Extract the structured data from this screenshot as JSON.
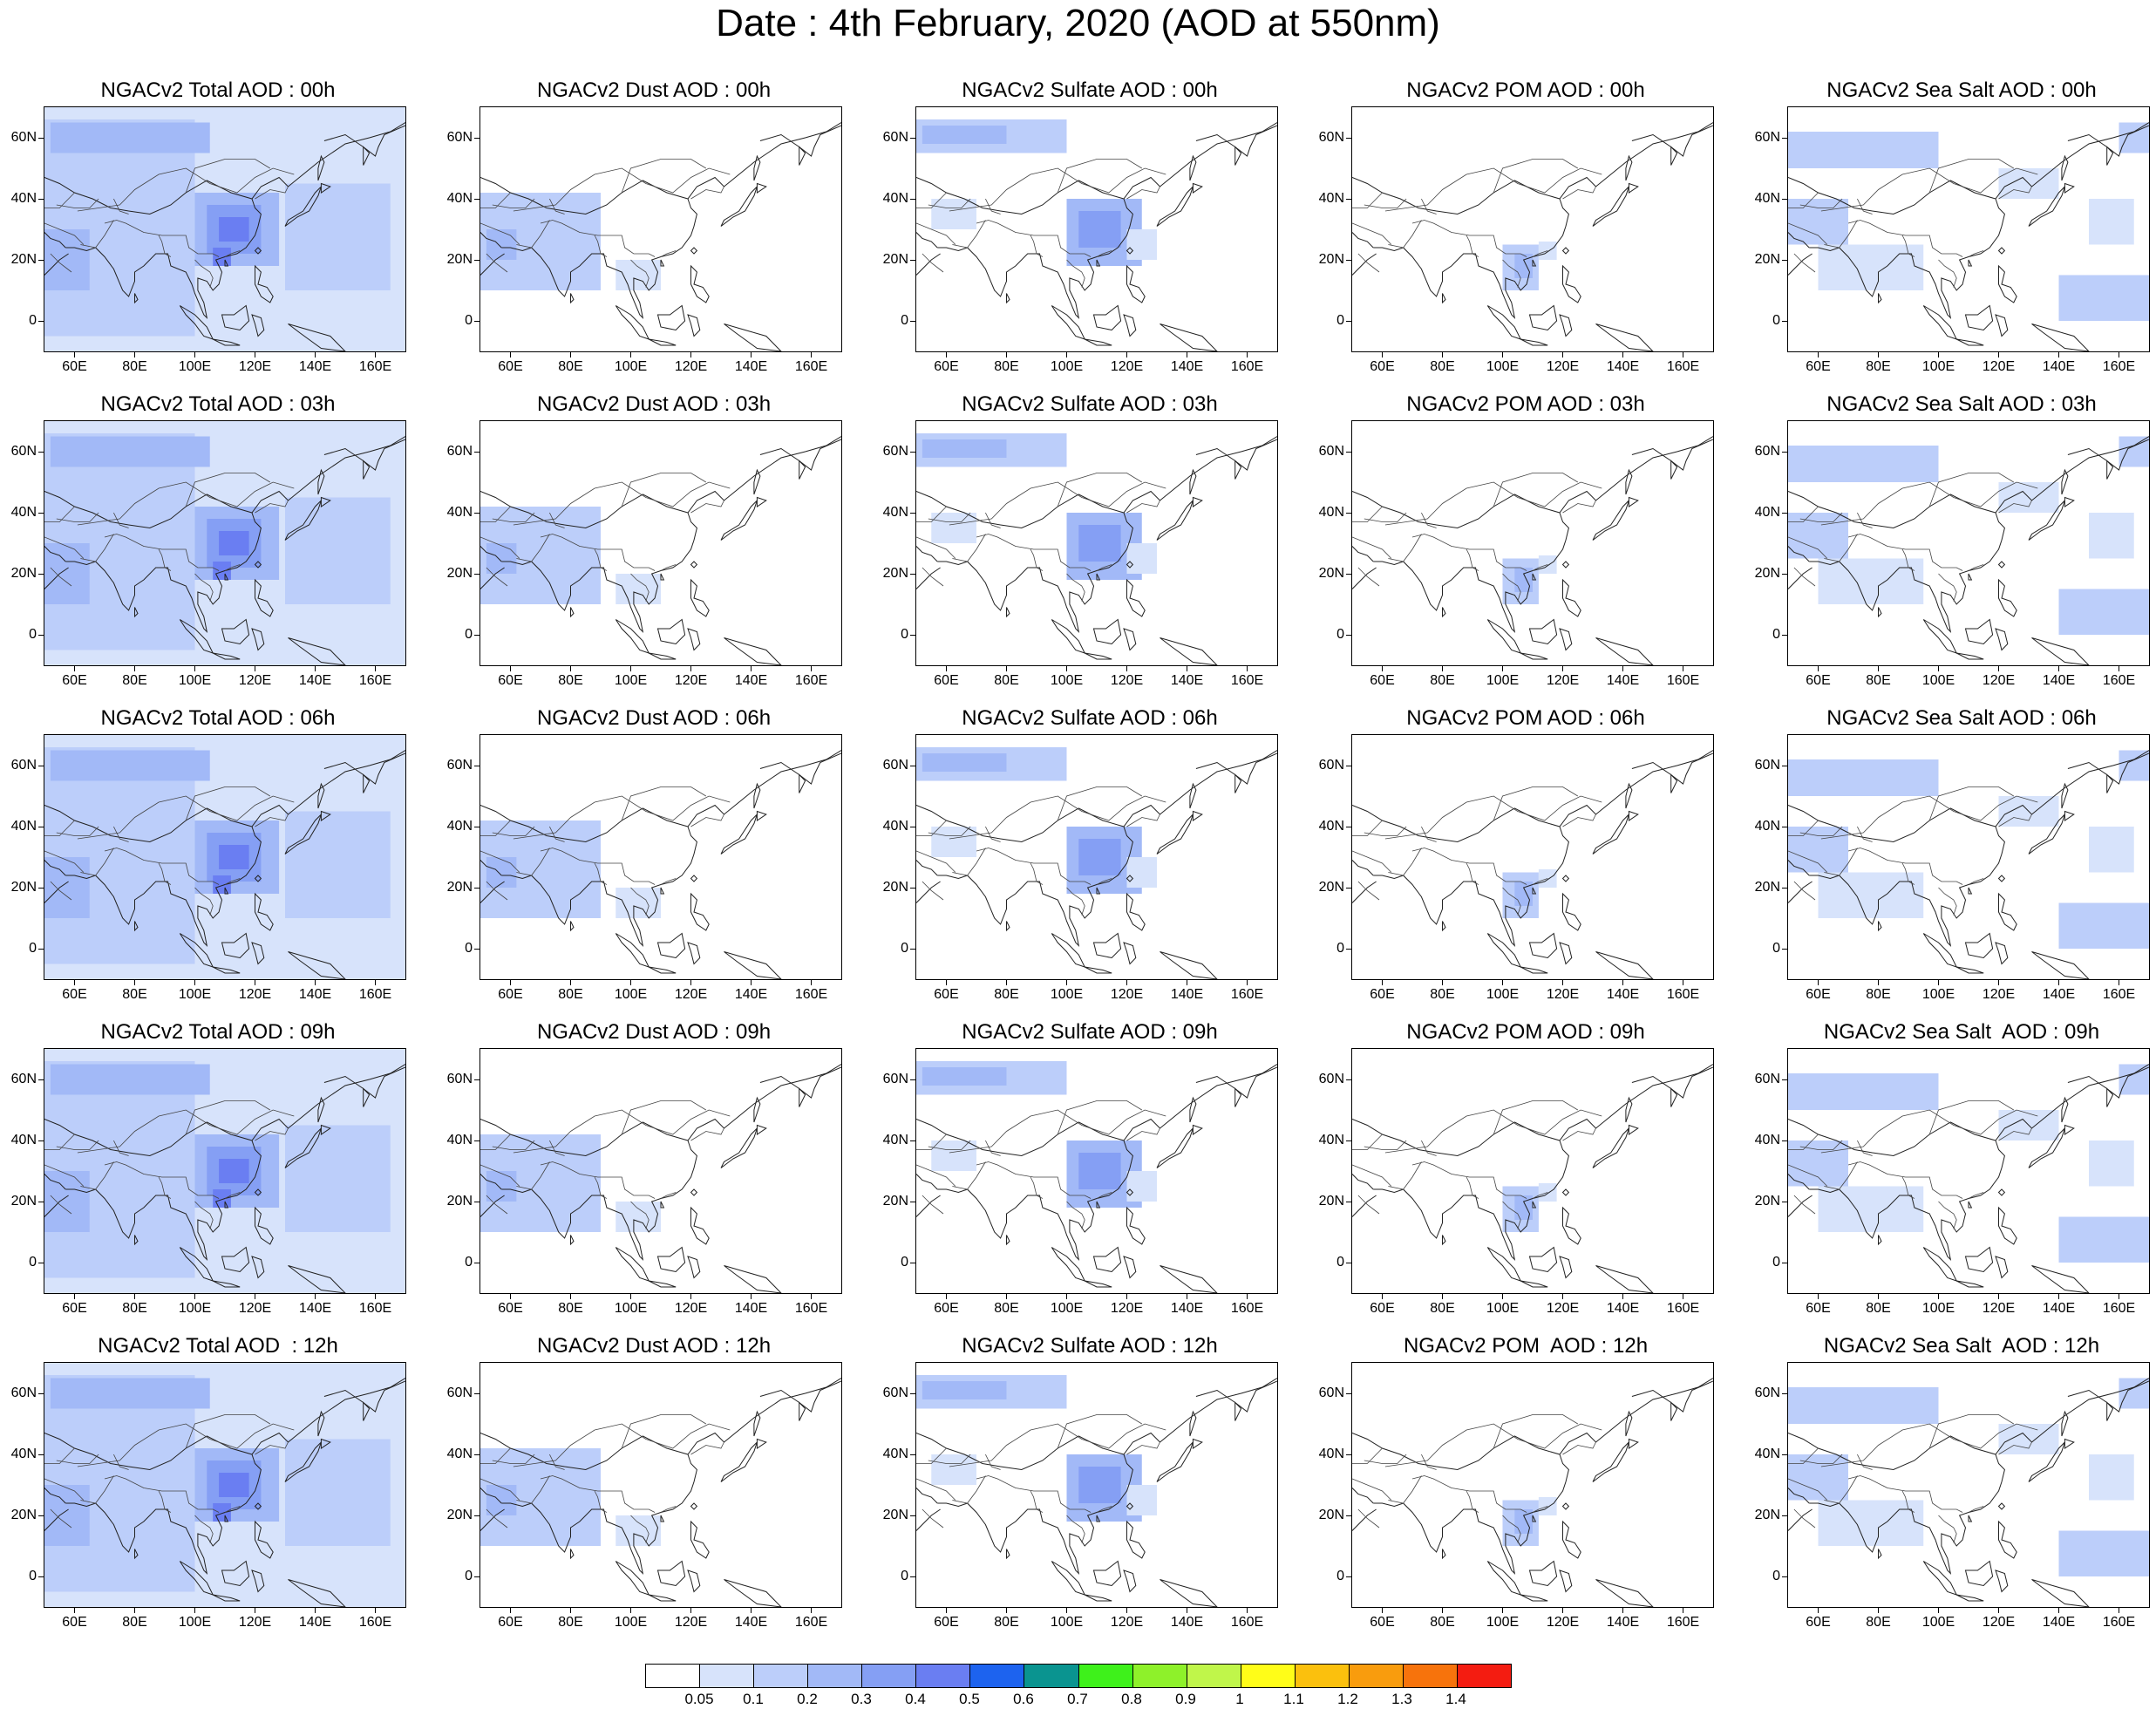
{
  "title": "Date : 4th February, 2020 (AOD at 550nm)",
  "x_ticks": [
    "60E",
    "80E",
    "100E",
    "120E",
    "140E",
    "160E"
  ],
  "y_ticks": [
    "60N",
    "40N",
    "20N",
    "0"
  ],
  "panels": [
    {
      "title": "NGACv2 Total AOD : 00h",
      "species": "total",
      "hour": "00h"
    },
    {
      "title": "NGACv2 Dust AOD : 00h",
      "species": "dust",
      "hour": "00h"
    },
    {
      "title": "NGACv2 Sulfate AOD : 00h",
      "species": "sulfate",
      "hour": "00h"
    },
    {
      "title": "NGACv2 POM AOD : 00h",
      "species": "pom",
      "hour": "00h"
    },
    {
      "title": "NGACv2 Sea Salt AOD : 00h",
      "species": "seasalt",
      "hour": "00h"
    },
    {
      "title": "NGACv2 Total AOD : 03h",
      "species": "total",
      "hour": "03h"
    },
    {
      "title": "NGACv2 Dust AOD : 03h",
      "species": "dust",
      "hour": "03h"
    },
    {
      "title": "NGACv2 Sulfate AOD : 03h",
      "species": "sulfate",
      "hour": "03h"
    },
    {
      "title": "NGACv2 POM AOD : 03h",
      "species": "pom",
      "hour": "03h"
    },
    {
      "title": "NGACv2 Sea Salt AOD : 03h",
      "species": "seasalt",
      "hour": "03h"
    },
    {
      "title": "NGACv2 Total AOD : 06h",
      "species": "total",
      "hour": "06h"
    },
    {
      "title": "NGACv2 Dust AOD : 06h",
      "species": "dust",
      "hour": "06h"
    },
    {
      "title": "NGACv2 Sulfate AOD : 06h",
      "species": "sulfate",
      "hour": "06h"
    },
    {
      "title": "NGACv2 POM AOD : 06h",
      "species": "pom",
      "hour": "06h"
    },
    {
      "title": "NGACv2 Sea Salt AOD : 06h",
      "species": "seasalt",
      "hour": "06h"
    },
    {
      "title": "NGACv2 Total AOD : 09h",
      "species": "total",
      "hour": "09h"
    },
    {
      "title": "NGACv2 Dust AOD : 09h",
      "species": "dust",
      "hour": "09h"
    },
    {
      "title": "NGACv2 Sulfate AOD : 09h",
      "species": "sulfate",
      "hour": "09h"
    },
    {
      "title": "NGACv2 POM AOD : 09h",
      "species": "pom",
      "hour": "09h"
    },
    {
      "title": "NGACv2 Sea Salt  AOD : 09h",
      "species": "seasalt",
      "hour": "09h"
    },
    {
      "title": "NGACv2 Total AOD  : 12h",
      "species": "total",
      "hour": "12h"
    },
    {
      "title": "NGACv2 Dust AOD : 12h",
      "species": "dust",
      "hour": "12h"
    },
    {
      "title": "NGACv2 Sulfate AOD : 12h",
      "species": "sulfate",
      "hour": "12h"
    },
    {
      "title": "NGACv2 POM  AOD : 12h",
      "species": "pom",
      "hour": "12h"
    },
    {
      "title": "NGACv2 Sea Salt  AOD : 12h",
      "species": "seasalt",
      "hour": "12h"
    }
  ],
  "colorbar": {
    "labels": [
      "0.05",
      "0.1",
      "0.2",
      "0.3",
      "0.4",
      "0.5",
      "0.6",
      "0.7",
      "0.8",
      "0.9",
      "1",
      "1.1",
      "1.2",
      "1.3",
      "1.4"
    ],
    "colors": [
      "#ffffff",
      "#d7e3fb",
      "#bccefa",
      "#a2b9f7",
      "#859ff4",
      "#6a7ef2",
      "#1d63ef",
      "#0a9490",
      "#3ef11b",
      "#8ef12a",
      "#c0f64a",
      "#fffd18",
      "#fbc00d",
      "#f99c0d",
      "#f7730c",
      "#f41c11"
    ]
  },
  "chart_data": {
    "type": "heatmap",
    "title": "Date : 4th February, 2020 (AOD at 550nm)",
    "xlabel": "",
    "ylabel": "",
    "xlim": [
      50,
      170
    ],
    "ylim": [
      -10,
      70
    ],
    "x_tick_values": [
      60,
      80,
      100,
      120,
      140,
      160
    ],
    "y_tick_values": [
      60,
      40,
      20,
      0
    ],
    "rows_hours": [
      "00h",
      "03h",
      "06h",
      "09h",
      "12h"
    ],
    "columns_species": [
      "Total",
      "Dust",
      "Sulfate",
      "POM",
      "Sea Salt"
    ],
    "levels": [
      0.05,
      0.1,
      0.2,
      0.3,
      0.4,
      0.5,
      0.6,
      0.7,
      0.8,
      0.9,
      1,
      1.1,
      1.2,
      1.3,
      1.4
    ],
    "approx_aod_regions": {
      "total": [
        {
          "region": "central Asia band near 60N",
          "lon": [
            50,
            100
          ],
          "lat": [
            55,
            65
          ],
          "aod": 0.2
        },
        {
          "region": "eastern China",
          "lon": [
            102,
            125
          ],
          "lat": [
            20,
            40
          ],
          "aod": 0.35
        },
        {
          "region": "South Asia / Arabian Sea",
          "lon": [
            50,
            90
          ],
          "lat": [
            5,
            35
          ],
          "aod": 0.15
        },
        {
          "region": "western Pacific",
          "lon": [
            120,
            165
          ],
          "lat": [
            0,
            50
          ],
          "aod": 0.1
        }
      ],
      "dust": [
        {
          "region": "Arabian Peninsula / South Asia",
          "lon": [
            50,
            80
          ],
          "lat": [
            10,
            40
          ],
          "aod": 0.15
        }
      ],
      "sulfate": [
        {
          "region": "central Asia band near 60N",
          "lon": [
            50,
            95
          ],
          "lat": [
            55,
            65
          ],
          "aod": 0.2
        },
        {
          "region": "eastern China",
          "lon": [
            102,
            125
          ],
          "lat": [
            20,
            40
          ],
          "aod": 0.3
        }
      ],
      "pom": [
        {
          "region": "Indochina",
          "lon": [
            100,
            112
          ],
          "lat": [
            10,
            25
          ],
          "aod": 0.15
        }
      ],
      "seasalt": [
        {
          "region": "oceans / Siberia patches",
          "lon": [
            50,
            170
          ],
          "lat": [
            -10,
            65
          ],
          "aod": 0.1
        }
      ]
    }
  }
}
